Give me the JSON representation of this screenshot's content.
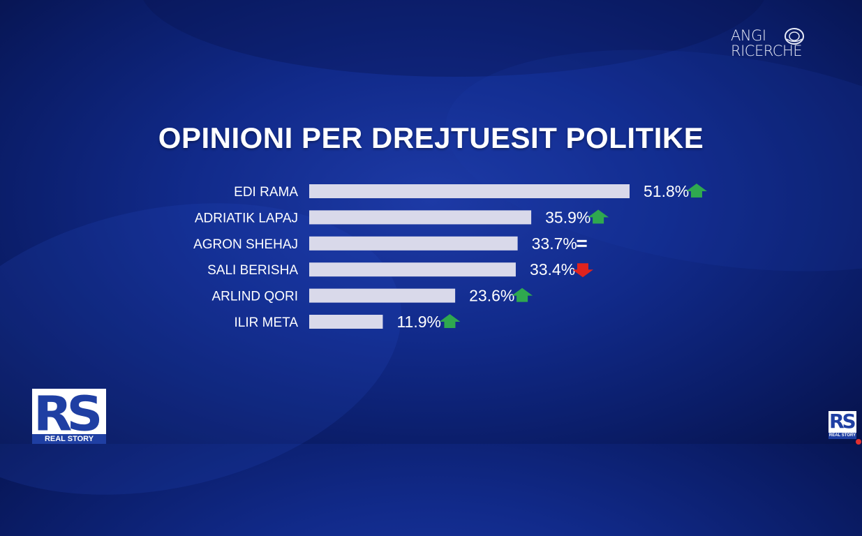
{
  "brand": {
    "line1": "ANGI",
    "line2": "RICERCHE"
  },
  "chart_data": {
    "type": "bar",
    "orientation": "horizontal",
    "title": "OPINIONI PER DREJTUESIT POLITIKE",
    "categories": [
      "EDI RAMA",
      "ADRIATIK LAPAJ",
      "AGRON SHEHAJ",
      "SALI BERISHA",
      "ARLIND QORI",
      "ILIR META"
    ],
    "values": [
      51.8,
      35.9,
      33.7,
      33.4,
      23.6,
      11.9
    ],
    "value_labels": [
      "51.8%",
      "35.9%",
      "33.7%",
      "33.4%",
      "23.6%",
      "11.9%"
    ],
    "trend": [
      "up",
      "up",
      "equal",
      "down",
      "up",
      "up"
    ],
    "unit": "%",
    "xlim": [
      0,
      51.8
    ],
    "grid": false,
    "colors": {
      "bar": "#d9d9ea",
      "up": "#2fa84f",
      "down": "#e0231e",
      "equal": "#ffffff"
    }
  },
  "logos": {
    "bottom_left": {
      "letters": "RS",
      "tag": "REAL STORY"
    },
    "bottom_right": {
      "letters": "RS",
      "tag": "REAL STORY"
    }
  }
}
